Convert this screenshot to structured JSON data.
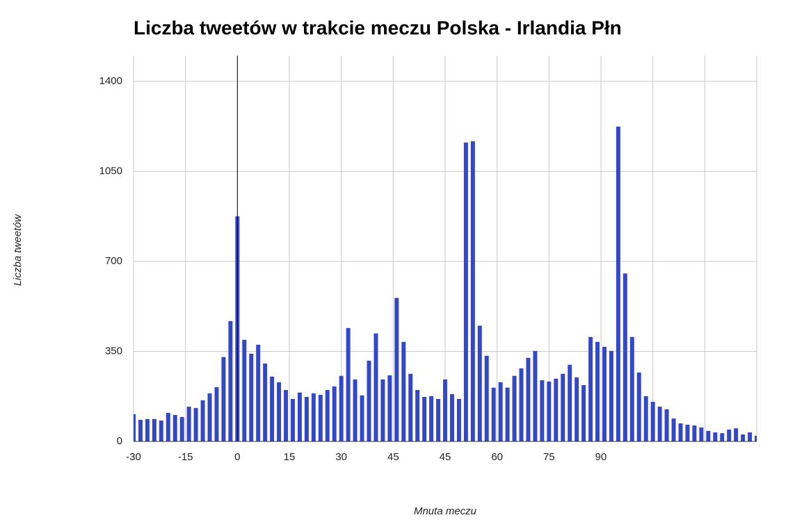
{
  "chart_data": {
    "type": "bar",
    "title": "Liczba tweetów w trakcie meczu Polska - Irlandia Płn",
    "x_label": "Mnuta meczu",
    "y_label": "Liczba tweetów",
    "x": [
      -30,
      -28,
      -26,
      -24,
      -22,
      -20,
      -18,
      -16,
      -14,
      -12,
      -10,
      -8,
      -6,
      -4,
      -2,
      0,
      2,
      4,
      6,
      8,
      10,
      12,
      14,
      16,
      18,
      20,
      22,
      24,
      26,
      28,
      30,
      32,
      34,
      36,
      38,
      40,
      42,
      44,
      46,
      48,
      50,
      52,
      54,
      56,
      58,
      60,
      62,
      64,
      66,
      68,
      70,
      72,
      74,
      76,
      78,
      80,
      82,
      84,
      86,
      88,
      90,
      92,
      94,
      96,
      98,
      100,
      102,
      104,
      106,
      108,
      110,
      112,
      114,
      116,
      118,
      120,
      122,
      124,
      126,
      128,
      130,
      132,
      134,
      136,
      138,
      140,
      142,
      144,
      146,
      148,
      150
    ],
    "values": [
      106,
      84,
      87,
      87,
      81,
      111,
      103,
      95,
      135,
      130,
      160,
      187,
      211,
      328,
      468,
      875,
      395,
      341,
      376,
      303,
      252,
      230,
      200,
      165,
      190,
      173,
      187,
      181,
      200,
      214,
      255,
      441,
      241,
      179,
      314,
      420,
      241,
      257,
      558,
      387,
      263,
      200,
      173,
      176,
      165,
      241,
      184,
      165,
      1162,
      1167,
      450,
      333,
      209,
      230,
      209,
      255,
      284,
      325,
      352,
      238,
      233,
      244,
      263,
      298,
      249,
      219,
      406,
      387,
      368,
      352,
      1224,
      653,
      406,
      268,
      176,
      154,
      135,
      125,
      89,
      70,
      65,
      62,
      54,
      41,
      35,
      32,
      46,
      51,
      27,
      35,
      22
    ],
    "color": "#3347c9",
    "xlim": [
      -30,
      150
    ],
    "xticks": [
      -30,
      -15,
      0,
      15,
      30,
      45,
      {
        "value": 60,
        "label": "45"
      },
      {
        "value": 75,
        "label": "60"
      },
      {
        "value": 90,
        "label": "75"
      },
      {
        "value": 105,
        "label": "90"
      },
      {
        "value": 120,
        "label": null
      },
      {
        "value": 135,
        "label": null
      }
    ],
    "ylim": [
      0,
      1500
    ],
    "yticks": [
      0,
      350,
      700,
      1050,
      1400
    ],
    "grid": true
  }
}
